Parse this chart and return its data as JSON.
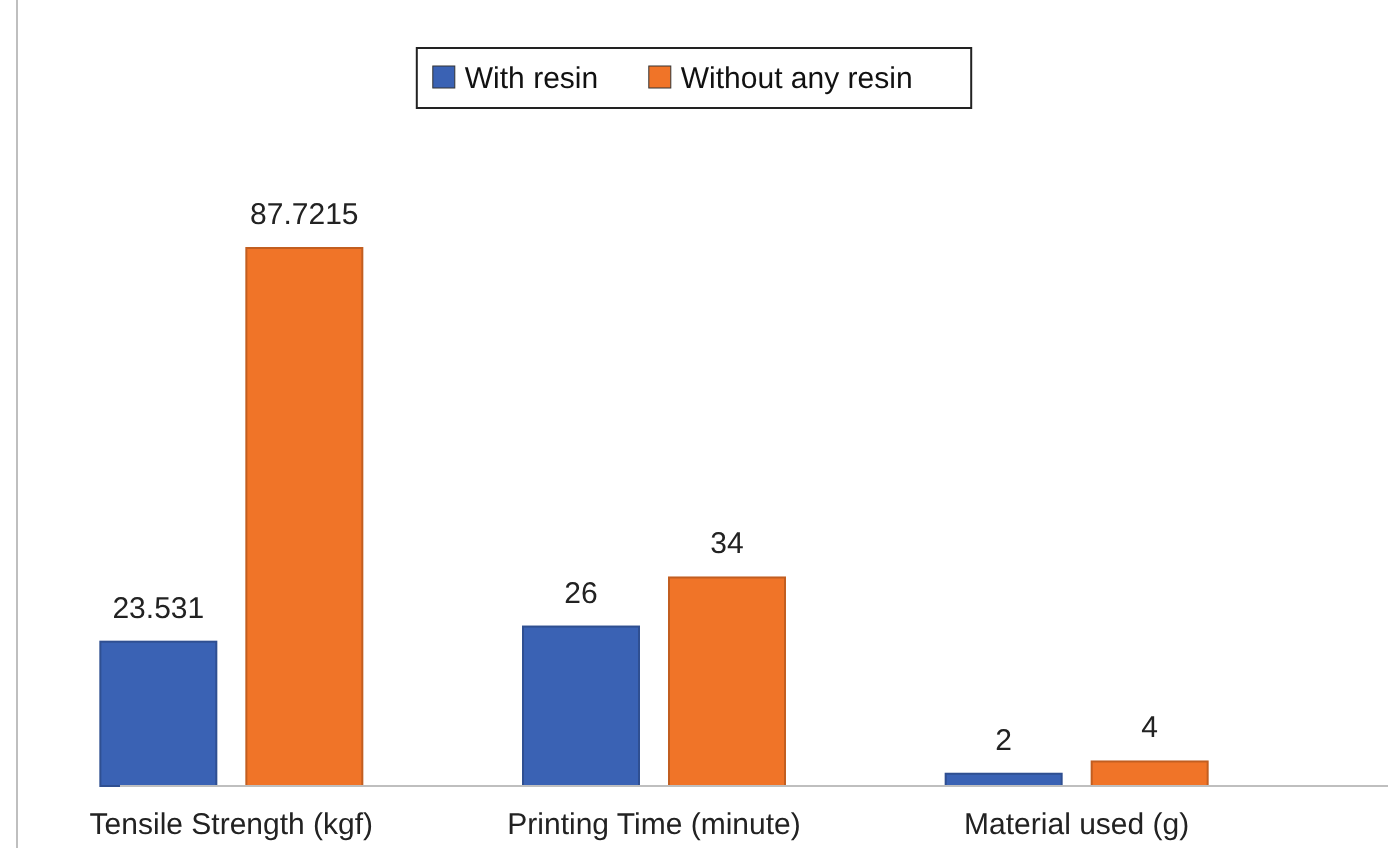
{
  "chart_data": {
    "type": "bar",
    "categories": [
      "Tensile Strength (kgf)",
      "Printing Time (minute)",
      "Material used (g)"
    ],
    "series": [
      {
        "name": "With resin",
        "color": "#3a62b4",
        "values": [
          23.531,
          26,
          2
        ]
      },
      {
        "name": "Without any resin",
        "color": "#f07428",
        "values": [
          87.7215,
          34,
          4
        ]
      }
    ],
    "data_labels": true,
    "legend": "top"
  }
}
